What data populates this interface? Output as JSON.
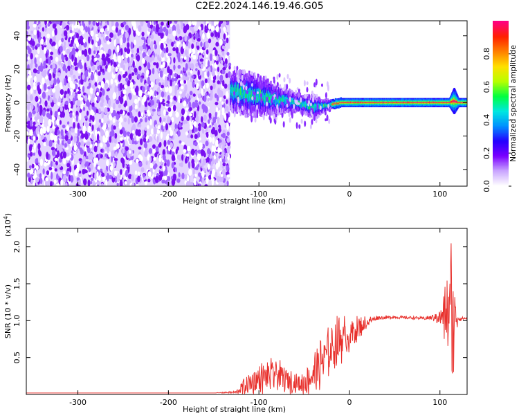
{
  "title": "C2E2.2024.146.19.46.G05",
  "chart_data": [
    {
      "type": "heatmap",
      "xlabel": "Height of straight line (km)",
      "ylabel": "Frequency (Hz)",
      "xlim": [
        -357,
        130
      ],
      "ylim": [
        -50,
        49
      ],
      "xticks": [
        -300,
        -200,
        -100,
        0,
        100
      ],
      "yticks": [
        -40,
        -20,
        0,
        20,
        40
      ],
      "noise_region_x": [
        -357,
        -132
      ],
      "signal_track": {
        "x": [
          -132,
          -120,
          -110,
          -100,
          -90,
          -80,
          -70,
          -60,
          -50,
          -40,
          -30,
          -20,
          -10,
          0,
          10,
          20,
          40,
          60,
          80,
          100,
          110,
          115,
          120,
          130
        ],
        "center_hz": [
          7,
          6,
          5,
          4,
          3,
          2,
          1,
          0,
          -1,
          -3,
          -2,
          -1,
          0,
          0,
          0,
          0,
          0,
          0,
          0,
          0,
          0,
          1,
          0,
          0
        ],
        "spread_hz": [
          8,
          9,
          9,
          8,
          7,
          6,
          5,
          4,
          4,
          5,
          3,
          2,
          2,
          2,
          2,
          2,
          2,
          2,
          2,
          2,
          2,
          6,
          2,
          2
        ]
      },
      "colorbar": {
        "label": "Normalized spectral amplitude",
        "range": [
          0,
          1
        ],
        "ticks": [
          0.0,
          0.2,
          0.4,
          0.6,
          0.8
        ],
        "colors": [
          "#ffffff",
          "#c9a5ff",
          "#7a00ff",
          "#2400ff",
          "#0090ff",
          "#00e8e0",
          "#00ff40",
          "#b8ff00",
          "#ffe000",
          "#ff8000",
          "#ff2000",
          "#ff0080"
        ]
      }
    },
    {
      "type": "line",
      "xlabel": "Height of straight line (km)",
      "ylabel": "SNR (10 * v/v)",
      "multiplier_label": "(x10",
      "multiplier_exp": "4",
      "multiplier_close": ")",
      "xlim": [
        -357,
        130
      ],
      "ylim": [
        0,
        2.25
      ],
      "xticks": [
        -300,
        -200,
        -100,
        0,
        100
      ],
      "yticks": [
        0.5,
        1.0,
        1.5,
        2.0
      ],
      "series": [
        {
          "color": "#e8302c",
          "x": [
            -357,
            -300,
            -250,
            -200,
            -150,
            -125,
            -120,
            -110,
            -100,
            -90,
            -80,
            -70,
            -60,
            -50,
            -40,
            -30,
            -20,
            -10,
            0,
            10,
            20,
            30,
            40,
            50,
            60,
            70,
            80,
            90,
            100,
            105,
            110,
            112,
            114,
            116,
            118,
            120,
            125,
            130
          ],
          "y": [
            0.02,
            0.02,
            0.02,
            0.02,
            0.02,
            0.03,
            0.08,
            0.15,
            0.2,
            0.25,
            0.28,
            0.2,
            0.15,
            0.15,
            0.28,
            0.45,
            0.62,
            0.75,
            0.8,
            0.9,
            0.98,
            1.04,
            1.04,
            1.05,
            1.04,
            1.04,
            1.03,
            1.04,
            1.05,
            1.06,
            1.1,
            1.2,
            0.95,
            1.05,
            1.03,
            1.03,
            1.03,
            1.03
          ],
          "noise": [
            0,
            0,
            0,
            0,
            0,
            0.02,
            0.08,
            0.14,
            0.17,
            0.2,
            0.18,
            0.15,
            0.12,
            0.14,
            0.22,
            0.3,
            0.3,
            0.28,
            0.2,
            0.14,
            0.08,
            0.03,
            0.02,
            0.02,
            0.02,
            0.02,
            0.02,
            0.03,
            0.1,
            0.35,
            0.5,
            1.0,
            0.85,
            0.5,
            0.2,
            0.05,
            0.02,
            0.02
          ]
        }
      ]
    }
  ]
}
